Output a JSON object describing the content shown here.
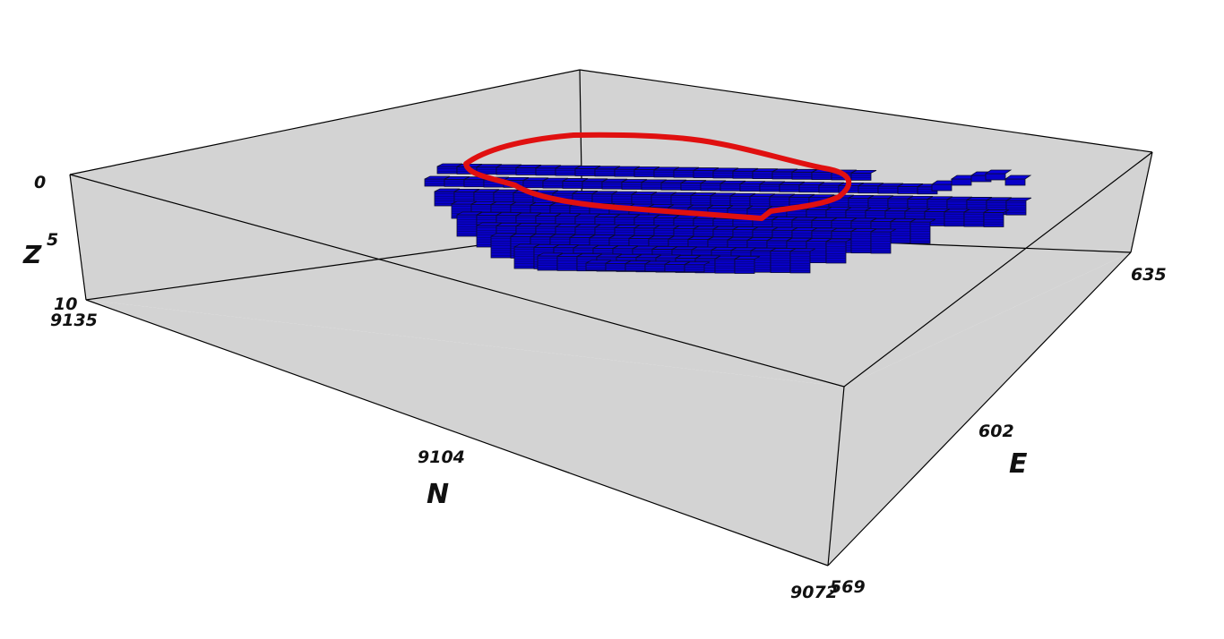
{
  "chart_data": {
    "type": "3d-block-model",
    "axes": {
      "x": {
        "label": "N",
        "range": [
          9072,
          9135
        ],
        "ticks": [
          "9135",
          "9104",
          "9072"
        ]
      },
      "y": {
        "label": "E",
        "range": [
          569,
          635
        ],
        "ticks": [
          "569",
          "602",
          "635"
        ]
      },
      "z": {
        "label": "Z",
        "range": [
          0,
          10
        ],
        "ticks": [
          "0",
          "5",
          "10"
        ]
      }
    },
    "series": [
      {
        "kind": "blocks",
        "color": "#0a00dc",
        "edge_color": "#0b0b30"
      },
      {
        "kind": "outline",
        "color": "#e01010"
      }
    ],
    "colors": {
      "floor": "#d3d3d3",
      "wall": "#d3d3d3",
      "box_lines": "#000000"
    }
  }
}
